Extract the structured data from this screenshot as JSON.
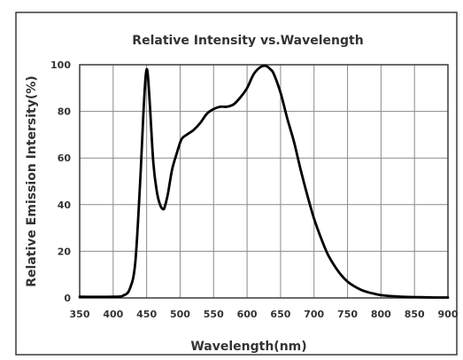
{
  "chart_data": {
    "type": "line",
    "title": "Relative Intensity vs.Wavelength",
    "xlabel": "Wavelength(nm)",
    "ylabel": "Relative Emission Intersity(%)",
    "xlim": [
      350,
      900
    ],
    "ylim": [
      0,
      100
    ],
    "x_ticks": [
      350,
      400,
      450,
      500,
      550,
      600,
      650,
      700,
      750,
      800,
      850,
      900
    ],
    "y_ticks": [
      0,
      20,
      40,
      60,
      80,
      100
    ],
    "x_tick_labels": [
      "350",
      "400",
      "450",
      "500",
      "550",
      "600",
      "650",
      "700",
      "750",
      "800",
      "850",
      "900"
    ],
    "y_tick_labels": [
      "0",
      "20",
      "40",
      "60",
      "80",
      "100"
    ],
    "grid": true,
    "series": [
      {
        "x": [
          350,
          400,
          415,
          425,
          433,
          440,
          445,
          448,
          450,
          452,
          455,
          460,
          465,
          470,
          475,
          478,
          482,
          488,
          495,
          502,
          510,
          520,
          530,
          540,
          550,
          560,
          570,
          580,
          590,
          600,
          610,
          620,
          628,
          635,
          640,
          650,
          660,
          670,
          680,
          690,
          700,
          710,
          720,
          730,
          740,
          750,
          760,
          770,
          780,
          790,
          800,
          820,
          840,
          860,
          880,
          900
        ],
        "y": [
          0.5,
          0.5,
          1,
          4,
          15,
          48,
          78,
          93,
          98,
          95,
          82,
          58,
          46,
          40,
          38,
          40,
          45,
          55,
          62,
          68,
          70,
          72,
          75,
          79,
          81,
          82,
          82,
          83,
          86,
          90,
          96,
          99,
          99.5,
          98,
          96,
          88,
          77,
          67,
          55,
          44,
          34,
          26,
          19,
          14,
          10,
          7,
          5,
          3.5,
          2.5,
          1.8,
          1.2,
          0.7,
          0.4,
          0.3,
          0.2,
          0.2
        ],
        "color": "#000000"
      }
    ]
  }
}
